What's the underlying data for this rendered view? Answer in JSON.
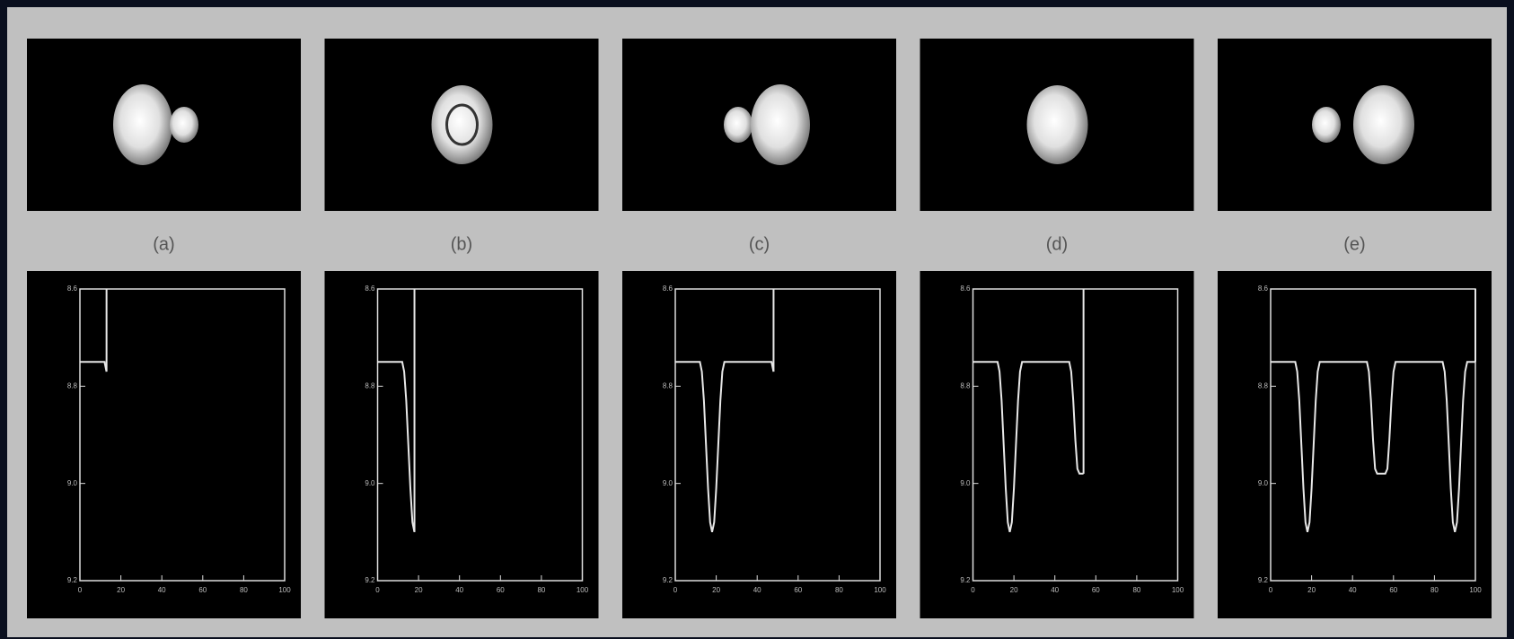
{
  "chart_data": [
    {
      "type": "line",
      "label": "(a)",
      "x": [
        0,
        12,
        13
      ],
      "values": [
        8.75,
        8.75,
        8.77
      ],
      "xlim": [
        0,
        100
      ],
      "ylim": [
        9.2,
        8.6
      ],
      "xticks": [
        0,
        20,
        40,
        60,
        80,
        100
      ],
      "yticks": [
        8.6,
        8.8,
        {
          "value": 9,
          "label": "9.0"
        },
        9.2
      ],
      "color": "#e8e8e8"
    },
    {
      "type": "line",
      "label": "(b)",
      "x": [
        0,
        12,
        13,
        14,
        15,
        16,
        17,
        18
      ],
      "values": [
        8.75,
        8.75,
        8.77,
        8.83,
        8.92,
        9.01,
        9.08,
        9.1
      ],
      "xlim": [
        0,
        100
      ],
      "ylim": [
        9.2,
        8.6
      ],
      "xticks": [
        0,
        20,
        40,
        60,
        80,
        100
      ],
      "yticks": [
        8.6,
        8.8,
        {
          "value": 9,
          "label": "9.0"
        },
        9.2
      ],
      "color": "#e8e8e8"
    },
    {
      "type": "line",
      "label": "(c)",
      "x": [
        0,
        12,
        13,
        14,
        15,
        16,
        17,
        18,
        19,
        20,
        21,
        22,
        23,
        24,
        47,
        48
      ],
      "values": [
        8.75,
        8.75,
        8.77,
        8.83,
        8.92,
        9.01,
        9.08,
        9.1,
        9.08,
        9.01,
        8.92,
        8.83,
        8.77,
        8.75,
        8.75,
        8.77
      ],
      "xlim": [
        0,
        100
      ],
      "ylim": [
        9.2,
        8.6
      ],
      "xticks": [
        0,
        20,
        40,
        60,
        80,
        100
      ],
      "yticks": [
        8.6,
        8.8,
        {
          "value": 9,
          "label": "9.0"
        },
        9.2
      ],
      "color": "#e8e8e8"
    },
    {
      "type": "line",
      "label": "(d)",
      "x": [
        0,
        12,
        13,
        14,
        15,
        16,
        17,
        18,
        19,
        20,
        21,
        22,
        23,
        24,
        47,
        48,
        49,
        50,
        51,
        52,
        53,
        54
      ],
      "values": [
        8.75,
        8.75,
        8.77,
        8.83,
        8.92,
        9.01,
        9.08,
        9.1,
        9.08,
        9.01,
        8.92,
        8.83,
        8.77,
        8.75,
        8.75,
        8.77,
        8.83,
        8.91,
        8.97,
        8.98,
        8.98,
        8.98
      ],
      "xlim": [
        0,
        100
      ],
      "ylim": [
        9.2,
        8.6
      ],
      "xticks": [
        0,
        20,
        40,
        60,
        80,
        100
      ],
      "yticks": [
        8.6,
        8.8,
        {
          "value": 9,
          "label": "9.0"
        },
        9.2
      ],
      "color": "#e8e8e8"
    },
    {
      "type": "line",
      "label": "(e)",
      "x": [
        0,
        12,
        13,
        14,
        15,
        16,
        17,
        18,
        19,
        20,
        21,
        22,
        23,
        24,
        47,
        48,
        49,
        50,
        51,
        52,
        53,
        54,
        55,
        56,
        57,
        58,
        59,
        60,
        61,
        84,
        85,
        86,
        87,
        88,
        89,
        90,
        91,
        92,
        93,
        94,
        95,
        96,
        100
      ],
      "values": [
        8.75,
        8.75,
        8.77,
        8.83,
        8.92,
        9.01,
        9.08,
        9.1,
        9.08,
        9.01,
        8.92,
        8.83,
        8.77,
        8.75,
        8.75,
        8.77,
        8.83,
        8.91,
        8.97,
        8.98,
        8.98,
        8.98,
        8.98,
        8.98,
        8.97,
        8.91,
        8.83,
        8.77,
        8.75,
        8.75,
        8.77,
        8.83,
        8.92,
        9.01,
        9.08,
        9.1,
        9.08,
        9.01,
        8.92,
        8.83,
        8.77,
        8.75,
        8.75
      ],
      "xlim": [
        0,
        100
      ],
      "ylim": [
        9.2,
        8.6
      ],
      "xticks": [
        0,
        20,
        40,
        60,
        80,
        100
      ],
      "yticks": [
        8.6,
        8.8,
        {
          "value": 9,
          "label": "9.0"
        },
        9.2
      ],
      "color": "#e8e8e8"
    }
  ]
}
